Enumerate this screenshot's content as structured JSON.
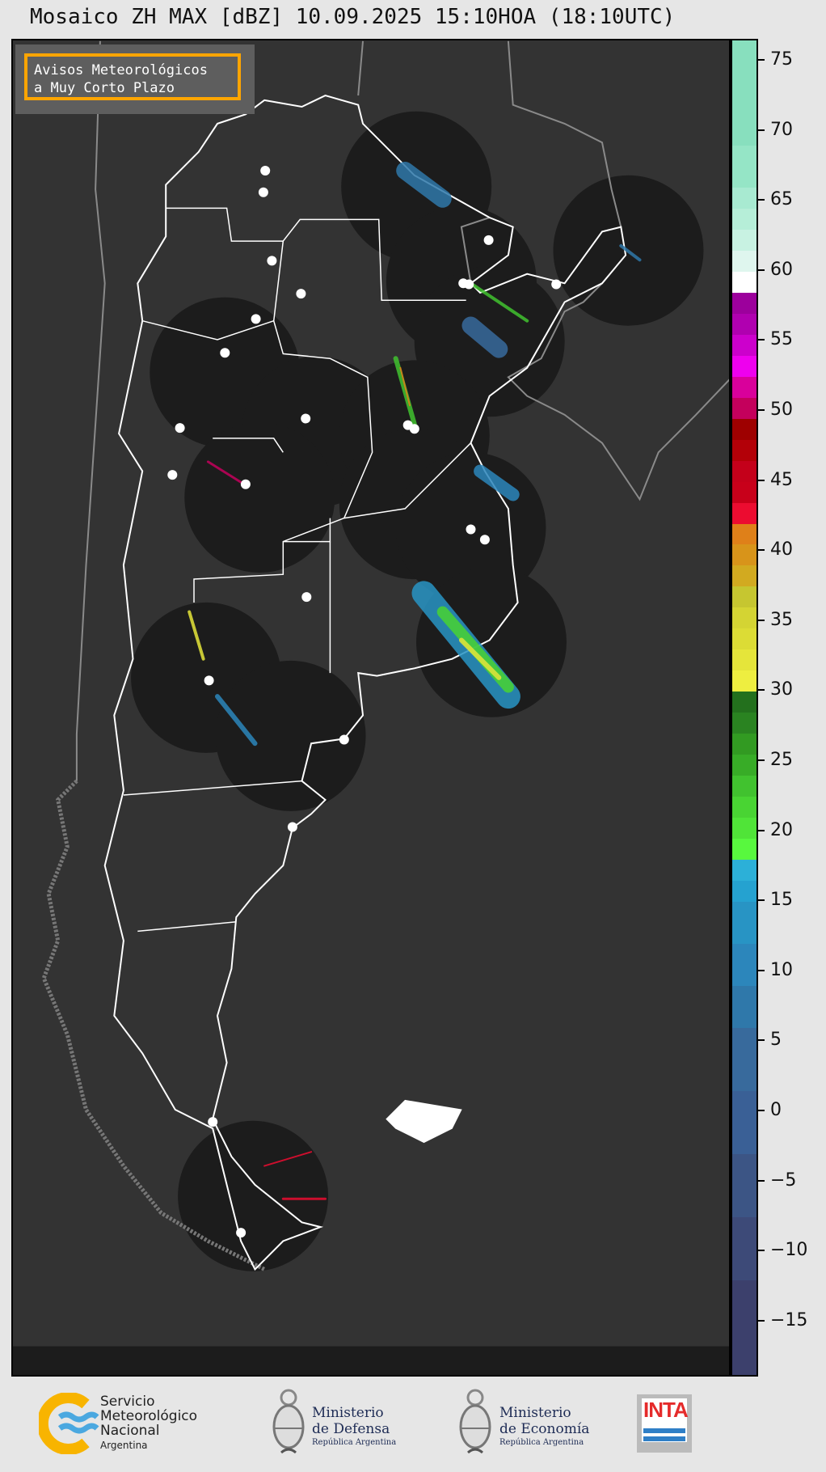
{
  "title": "Mosaico ZH MAX [dBZ] 10.09.2025 15:10HOA (18:10UTC)",
  "legend_box": {
    "line1": "Avisos Meteorológicos",
    "line2": "a Muy Corto Plazo",
    "border_color": "#ffa500"
  },
  "colorbar": {
    "unit": "dBZ",
    "range": [
      -19,
      76.5
    ],
    "ticks": [
      "75",
      "70",
      "65",
      "60",
      "55",
      "50",
      "45",
      "40",
      "35",
      "30",
      "25",
      "20",
      "15",
      "10",
      "5",
      "0",
      "−5",
      "−10",
      "−15"
    ],
    "tick_values": [
      75,
      70,
      65,
      60,
      55,
      50,
      45,
      40,
      35,
      30,
      25,
      20,
      15,
      10,
      5,
      0,
      -5,
      -10,
      -15
    ],
    "segments": [
      {
        "from": 69,
        "to": 76.5,
        "color": "#88dfbe"
      },
      {
        "from": 66,
        "to": 69,
        "color": "#95e5c6"
      },
      {
        "from": 64.5,
        "to": 66,
        "color": "#a8ead1"
      },
      {
        "from": 63,
        "to": 64.5,
        "color": "#b6eed8"
      },
      {
        "from": 61.5,
        "to": 63,
        "color": "#c8f2e2"
      },
      {
        "from": 60,
        "to": 61.5,
        "color": "#dff6ee"
      },
      {
        "from": 58.5,
        "to": 60,
        "color": "#ffffff"
      },
      {
        "from": 57,
        "to": 58.5,
        "color": "#9c009c"
      },
      {
        "from": 55.5,
        "to": 57,
        "color": "#b000b0"
      },
      {
        "from": 54,
        "to": 55.5,
        "color": "#cc00cc"
      },
      {
        "from": 52.5,
        "to": 54,
        "color": "#ee00ee"
      },
      {
        "from": 51,
        "to": 52.5,
        "color": "#d9009b"
      },
      {
        "from": 49.5,
        "to": 51,
        "color": "#c4005c"
      },
      {
        "from": 48,
        "to": 49.5,
        "color": "#9e0000"
      },
      {
        "from": 46.5,
        "to": 48,
        "color": "#b30008"
      },
      {
        "from": 45,
        "to": 46.5,
        "color": "#c4001a"
      },
      {
        "from": 43.5,
        "to": 45,
        "color": "#c8001a"
      },
      {
        "from": 42,
        "to": 43.5,
        "color": "#ec0c30"
      },
      {
        "from": 40.5,
        "to": 42,
        "color": "#df8019"
      },
      {
        "from": 39,
        "to": 40.5,
        "color": "#d8941a"
      },
      {
        "from": 37.5,
        "to": 39,
        "color": "#d2aa20"
      },
      {
        "from": 36,
        "to": 37.5,
        "color": "#c6c630"
      },
      {
        "from": 34.5,
        "to": 36,
        "color": "#d4d433"
      },
      {
        "from": 33,
        "to": 34.5,
        "color": "#dcdc35"
      },
      {
        "from": 31.5,
        "to": 33,
        "color": "#e5e53a"
      },
      {
        "from": 30,
        "to": 31.5,
        "color": "#eeee40"
      },
      {
        "from": 28.5,
        "to": 30,
        "color": "#23701d"
      },
      {
        "from": 27,
        "to": 28.5,
        "color": "#2a8321"
      },
      {
        "from": 25.5,
        "to": 27,
        "color": "#329a22"
      },
      {
        "from": 24,
        "to": 25.5,
        "color": "#38ac27"
      },
      {
        "from": 22.5,
        "to": 24,
        "color": "#41c22f"
      },
      {
        "from": 21,
        "to": 22.5,
        "color": "#49d433"
      },
      {
        "from": 19.5,
        "to": 21,
        "color": "#50e438"
      },
      {
        "from": 18,
        "to": 19.5,
        "color": "#58f83e"
      },
      {
        "from": 16.5,
        "to": 18,
        "color": "#2cb0d8"
      },
      {
        "from": 15,
        "to": 16.5,
        "color": "#25a2d0"
      },
      {
        "from": 12,
        "to": 15,
        "color": "#2894c4"
      },
      {
        "from": 9,
        "to": 12,
        "color": "#2c86bb"
      },
      {
        "from": 6,
        "to": 9,
        "color": "#2f78aa"
      },
      {
        "from": 1.5,
        "to": 6,
        "color": "#386a9c"
      },
      {
        "from": -3,
        "to": 1.5,
        "color": "#3a6096"
      },
      {
        "from": -7.5,
        "to": -3,
        "color": "#3c5585"
      },
      {
        "from": -12,
        "to": -7.5,
        "color": "#3d4a78"
      },
      {
        "from": -19,
        "to": -12,
        "color": "#3c406c"
      }
    ]
  },
  "map": {
    "background": "#333333",
    "radar_coverage_color": "#1c1c1c",
    "border_color": "#ffffff",
    "neighbor_border_color": "#8a8a8a"
  },
  "footer": {
    "smn": {
      "line1": "Servicio",
      "line2": "Meteorológico",
      "line3": "Nacional",
      "line4": "Argentina"
    },
    "defensa": {
      "line1": "Ministerio",
      "line2": "de Defensa",
      "line3": "República Argentina"
    },
    "economia": {
      "line1": "Ministerio",
      "line2": "de Economía",
      "line3": "República Argentina"
    },
    "inta": {
      "label": "INTA"
    }
  }
}
